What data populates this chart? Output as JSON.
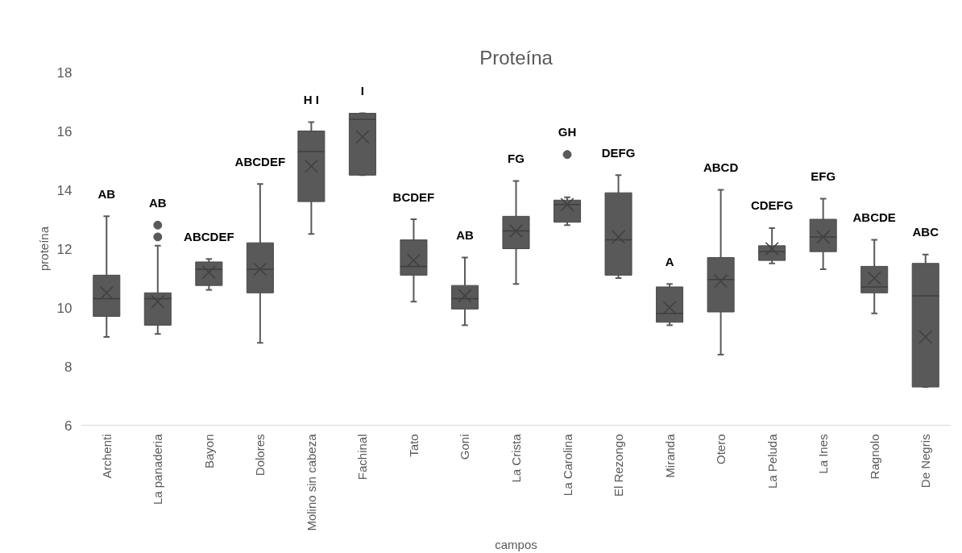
{
  "chart_data": {
    "type": "box",
    "title": "Proteína",
    "xlabel": "campos",
    "ylabel": "proteína",
    "categories": [
      "Archenti",
      "La panaderia",
      "Bayon",
      "Dolores",
      "Molino sin cabeza",
      "Fachinal",
      "Tato",
      "Goni",
      "La Crista",
      "La Carolina",
      "El Rezongo",
      "Miranda",
      "Otero",
      "La Peluda",
      "La Ines",
      "Ragnolo",
      "De Negris"
    ],
    "color": "#595959",
    "marker": "cross",
    "grid": false,
    "ylim": [
      6,
      18
    ],
    "yticks": [
      6,
      8,
      10,
      12,
      14,
      16,
      18
    ],
    "boxes": [
      {
        "low": 9.0,
        "q1": 9.7,
        "median": 10.3,
        "q3": 11.1,
        "high": 13.1,
        "mean": 10.5
      },
      {
        "low": 9.1,
        "q1": 9.4,
        "median": 10.3,
        "q3": 10.5,
        "high": 12.1,
        "mean": 10.2,
        "outliers": [
          12.4,
          12.8
        ]
      },
      {
        "low": 10.6,
        "q1": 10.75,
        "median": 11.3,
        "q3": 11.55,
        "high": 11.65,
        "mean": 11.2
      },
      {
        "low": 8.8,
        "q1": 10.5,
        "median": 11.3,
        "q3": 12.2,
        "high": 14.2,
        "mean": 11.3
      },
      {
        "low": 12.5,
        "q1": 13.6,
        "median": 15.3,
        "q3": 16.0,
        "high": 16.3,
        "mean": 14.8
      },
      {
        "low": 14.5,
        "q1": 14.5,
        "median": 16.4,
        "q3": 16.6,
        "high": 16.6,
        "mean": 15.8
      },
      {
        "low": 10.2,
        "q1": 11.1,
        "median": 11.4,
        "q3": 12.3,
        "high": 13.0,
        "mean": 11.6
      },
      {
        "low": 9.4,
        "q1": 9.95,
        "median": 10.3,
        "q3": 10.75,
        "high": 11.7,
        "mean": 10.4
      },
      {
        "low": 10.8,
        "q1": 12.0,
        "median": 12.6,
        "q3": 13.1,
        "high": 14.3,
        "mean": 12.6
      },
      {
        "low": 12.8,
        "q1": 12.9,
        "median": 13.5,
        "q3": 13.65,
        "high": 13.75,
        "mean": 13.5,
        "outliers": [
          15.2
        ]
      },
      {
        "low": 11.0,
        "q1": 11.1,
        "median": 12.3,
        "q3": 13.9,
        "high": 14.5,
        "mean": 12.4
      },
      {
        "low": 9.4,
        "q1": 9.5,
        "median": 9.8,
        "q3": 10.7,
        "high": 10.8,
        "mean": 10.0
      },
      {
        "low": 8.4,
        "q1": 9.85,
        "median": 10.95,
        "q3": 11.7,
        "high": 14.0,
        "mean": 10.9
      },
      {
        "low": 11.5,
        "q1": 11.6,
        "median": 11.9,
        "q3": 12.1,
        "high": 12.7,
        "mean": 12.0
      },
      {
        "low": 11.3,
        "q1": 11.9,
        "median": 12.4,
        "q3": 13.0,
        "high": 13.7,
        "mean": 12.4
      },
      {
        "low": 9.8,
        "q1": 10.5,
        "median": 10.7,
        "q3": 11.4,
        "high": 12.3,
        "mean": 11.0
      },
      {
        "low": 7.3,
        "q1": 7.3,
        "median": 10.4,
        "q3": 11.5,
        "high": 11.8,
        "mean": 9.0
      }
    ],
    "annotations": [
      "AB",
      "AB",
      "ABCDEF",
      "ABCDEF",
      "H I",
      "I",
      "BCDEF",
      "AB",
      "FG",
      "GH",
      "DEFG",
      "A",
      "ABCD",
      "CDEFG",
      "EFG",
      "ABCDE",
      "ABC"
    ]
  }
}
